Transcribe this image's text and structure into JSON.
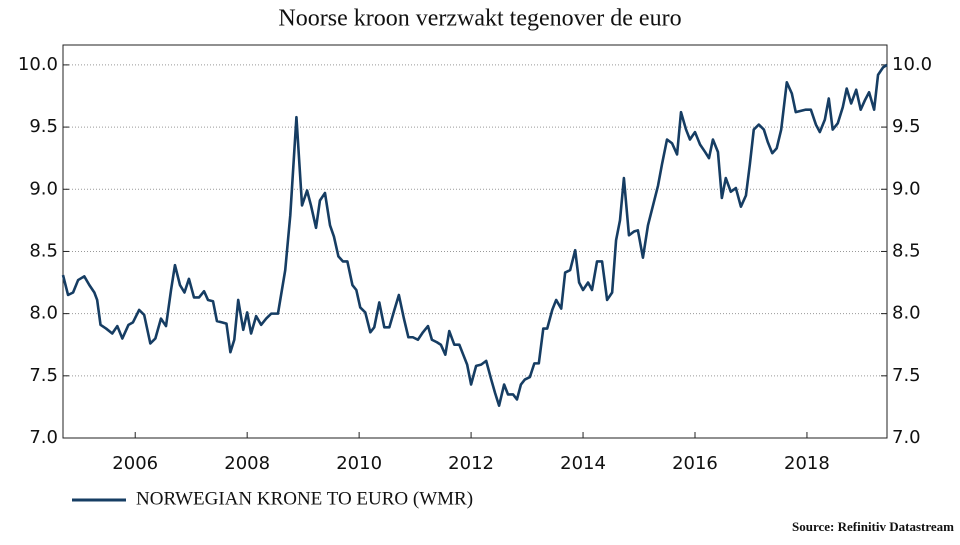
{
  "chart_data": {
    "type": "line",
    "title": "Noorse kroon verzwakt tegenover de euro",
    "source": "Source: Refinitiv Datastream",
    "x": [
      2004.71,
      2004.8,
      2004.89,
      2004.98,
      2005.09,
      2005.18,
      2005.27,
      2005.32,
      2005.38,
      2005.48,
      2005.59,
      2005.68,
      2005.77,
      2005.88,
      2005.96,
      2006.07,
      2006.16,
      2006.27,
      2006.36,
      2006.46,
      2006.55,
      2006.64,
      2006.71,
      2006.8,
      2006.88,
      2006.96,
      2007.05,
      2007.14,
      2007.23,
      2007.3,
      2007.39,
      2007.46,
      2007.55,
      2007.63,
      2007.7,
      2007.77,
      2007.84,
      2007.93,
      2008.0,
      2008.07,
      2008.16,
      2008.25,
      2008.34,
      2008.43,
      2008.55,
      2008.68,
      2008.77,
      2008.88,
      2008.98,
      2009.07,
      2009.14,
      2009.23,
      2009.3,
      2009.39,
      2009.48,
      2009.55,
      2009.63,
      2009.71,
      2009.79,
      2009.88,
      2009.95,
      2010.02,
      2010.11,
      2010.2,
      2010.27,
      2010.36,
      2010.45,
      2010.54,
      2010.63,
      2010.71,
      2010.8,
      2010.88,
      2010.96,
      2011.05,
      2011.14,
      2011.23,
      2011.3,
      2011.39,
      2011.46,
      2011.54,
      2011.61,
      2011.7,
      2011.79,
      2011.86,
      2011.93,
      2012.0,
      2012.09,
      2012.18,
      2012.27,
      2012.36,
      2012.43,
      2012.5,
      2012.59,
      2012.66,
      2012.75,
      2012.82,
      2012.89,
      2012.96,
      2013.05,
      2013.13,
      2013.21,
      2013.29,
      2013.36,
      2013.45,
      2013.52,
      2013.61,
      2013.68,
      2013.77,
      2013.86,
      2013.93,
      2014.0,
      2014.09,
      2014.16,
      2014.25,
      2014.34,
      2014.43,
      2014.52,
      2014.59,
      2014.66,
      2014.73,
      2014.82,
      2014.91,
      2014.98,
      2015.07,
      2015.16,
      2015.25,
      2015.34,
      2015.41,
      2015.5,
      2015.59,
      2015.68,
      2015.75,
      2015.84,
      2015.91,
      2016.0,
      2016.09,
      2016.18,
      2016.25,
      2016.32,
      2016.41,
      2016.48,
      2016.55,
      2016.64,
      2016.73,
      2016.82,
      2016.91,
      2016.98,
      2017.05,
      2017.14,
      2017.23,
      2017.3,
      2017.38,
      2017.46,
      2017.54,
      2017.64,
      2017.73,
      2017.8,
      2017.89,
      2017.98,
      2018.07,
      2018.16,
      2018.23,
      2018.32,
      2018.39,
      2018.46,
      2018.55,
      2018.64,
      2018.71,
      2018.79,
      2018.88,
      2018.96,
      2019.04,
      2019.11,
      2019.2,
      2019.27,
      2019.36,
      2019.43
    ],
    "series": [
      {
        "name": "NORWEGIAN KRONE TO EURO (WMR)",
        "color": "#163d63",
        "values": [
          8.31,
          8.15,
          8.17,
          8.27,
          8.3,
          8.23,
          8.17,
          8.11,
          7.91,
          7.88,
          7.84,
          7.9,
          7.8,
          7.91,
          7.93,
          8.03,
          7.99,
          7.76,
          7.8,
          7.96,
          7.9,
          8.19,
          8.39,
          8.23,
          8.17,
          8.28,
          8.13,
          8.13,
          8.18,
          8.11,
          8.1,
          7.94,
          7.93,
          7.92,
          7.69,
          7.79,
          8.11,
          7.87,
          8.01,
          7.84,
          7.98,
          7.91,
          7.96,
          8.0,
          8.0,
          8.35,
          8.79,
          9.58,
          8.87,
          8.99,
          8.87,
          8.69,
          8.91,
          8.97,
          8.71,
          8.62,
          8.46,
          8.42,
          8.42,
          8.23,
          8.19,
          8.05,
          8.01,
          7.85,
          7.89,
          8.09,
          7.89,
          7.89,
          8.03,
          8.15,
          7.96,
          7.81,
          7.81,
          7.79,
          7.85,
          7.9,
          7.79,
          7.77,
          7.75,
          7.67,
          7.86,
          7.75,
          7.75,
          7.67,
          7.59,
          7.43,
          7.58,
          7.59,
          7.62,
          7.47,
          7.36,
          7.26,
          7.43,
          7.35,
          7.35,
          7.31,
          7.43,
          7.47,
          7.49,
          7.6,
          7.6,
          7.88,
          7.88,
          8.03,
          8.11,
          8.04,
          8.33,
          8.35,
          8.51,
          8.25,
          8.19,
          8.25,
          8.19,
          8.42,
          8.42,
          8.11,
          8.17,
          8.59,
          8.75,
          9.09,
          8.63,
          8.66,
          8.67,
          8.45,
          8.71,
          8.87,
          9.03,
          9.2,
          9.4,
          9.37,
          9.28,
          9.62,
          9.48,
          9.4,
          9.46,
          9.36,
          9.3,
          9.25,
          9.4,
          9.3,
          8.93,
          9.09,
          8.98,
          9.01,
          8.86,
          8.95,
          9.2,
          9.48,
          9.52,
          9.48,
          9.38,
          9.29,
          9.33,
          9.48,
          9.86,
          9.77,
          9.62,
          9.63,
          9.64,
          9.64,
          9.52,
          9.46,
          9.56,
          9.73,
          9.48,
          9.53,
          9.66,
          9.81,
          9.69,
          9.8,
          9.64,
          9.72,
          9.78,
          9.64,
          9.92,
          9.98,
          10.0
        ]
      }
    ],
    "xlim": [
      2004.71,
      2019.43
    ],
    "xticks": [
      2006,
      2008,
      2010,
      2012,
      2014,
      2016,
      2018
    ],
    "ylim": [
      7,
      10.16
    ],
    "yticks": [
      {
        "value": 7,
        "label": "7.0"
      },
      {
        "value": 7.5,
        "label": "7.5"
      },
      {
        "value": 8,
        "label": "8.0"
      },
      {
        "value": 8.5,
        "label": "8.5"
      },
      {
        "value": 9,
        "label": "9.0"
      },
      {
        "value": 9.5,
        "label": "9.5"
      },
      {
        "value": 10,
        "label": "10.0"
      }
    ],
    "grid": true
  }
}
